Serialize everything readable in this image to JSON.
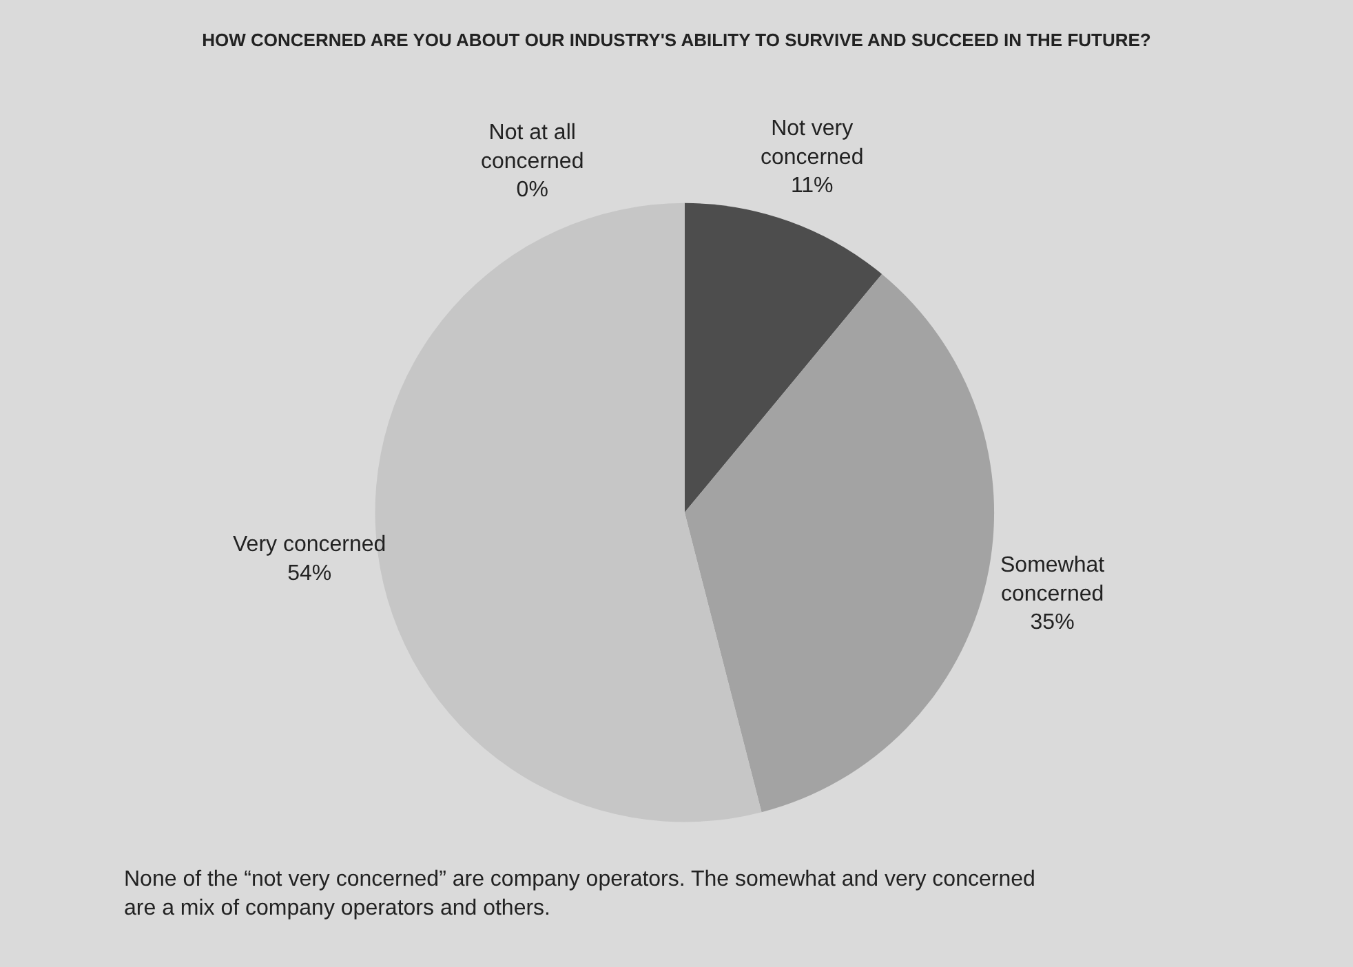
{
  "chart_data": {
    "type": "pie",
    "title": "HOW CONCERNED ARE YOU ABOUT OUR INDUSTRY'S ABILITY TO SURVIVE AND SUCCEED IN THE FUTURE?",
    "categories": [
      "Not very concerned",
      "Somewhat concerned",
      "Very concerned",
      "Not at all concerned"
    ],
    "values": [
      11,
      35,
      54,
      0
    ],
    "colors": [
      "#4d4d4d",
      "#a3a3a3",
      "#c6c6c6",
      "#e6e6e6"
    ],
    "value_labels": [
      "11%",
      "35%",
      "54%",
      "0%"
    ],
    "legend": false,
    "annotations": [
      "None of the “not very concerned” are company operators. The somewhat and very concerned are a mix of company operators and others."
    ]
  }
}
